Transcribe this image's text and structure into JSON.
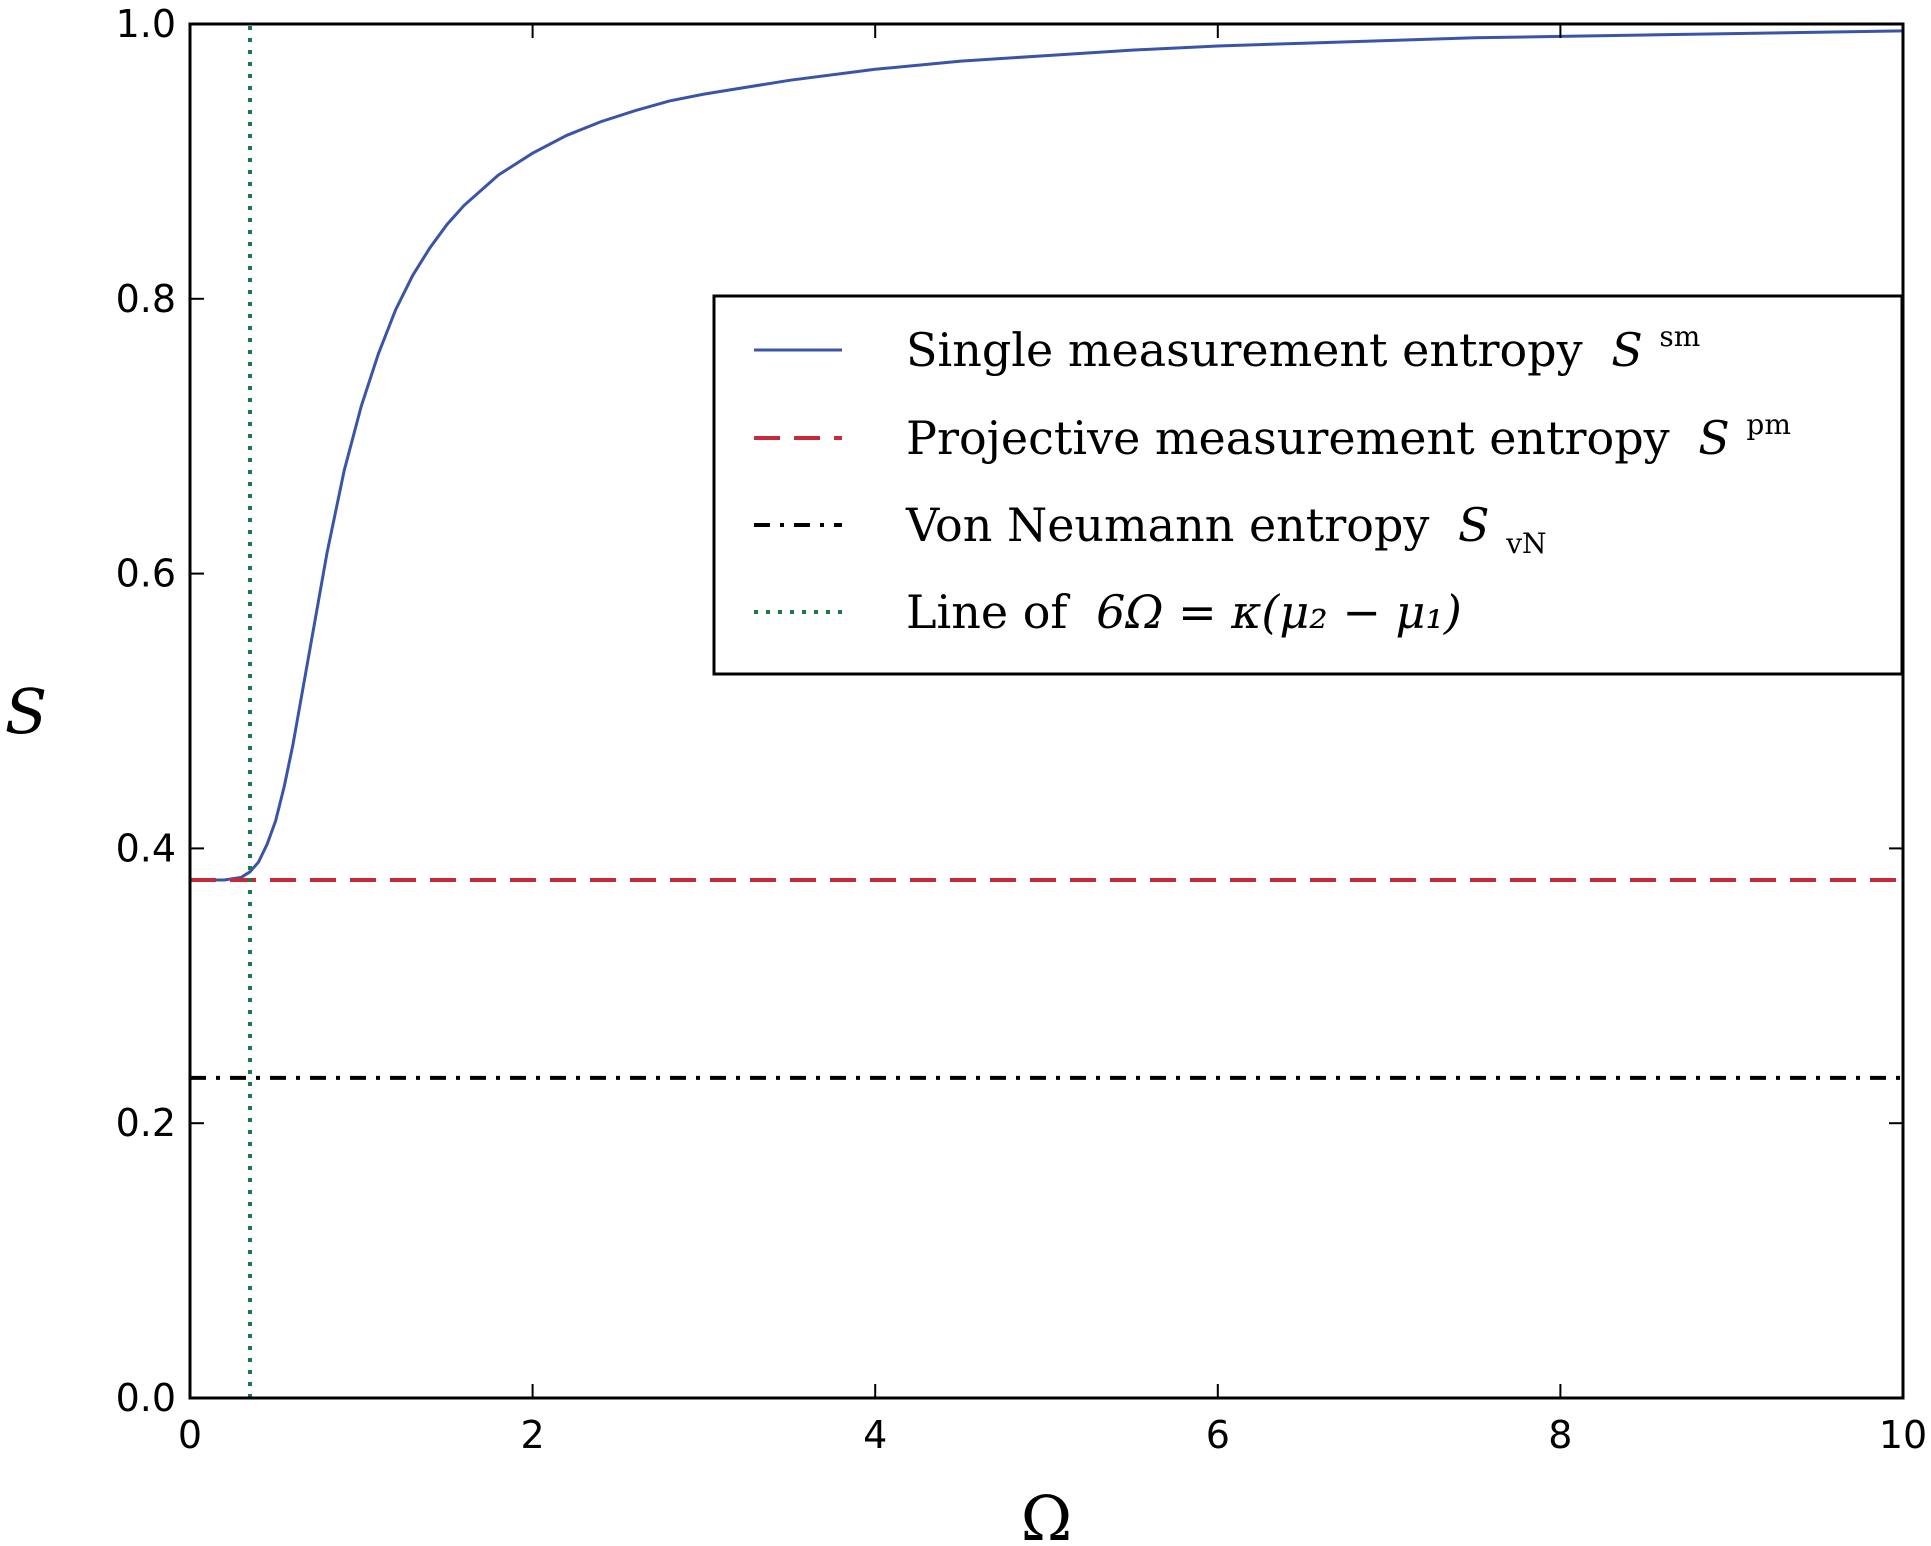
{
  "chart_data": {
    "type": "line",
    "xlabel": "Ω",
    "ylabel": "S",
    "xlim": [
      0,
      10
    ],
    "ylim": [
      0,
      1.0
    ],
    "x_ticks": [
      "0",
      "2",
      "4",
      "6",
      "8",
      "10"
    ],
    "y_ticks": [
      "0.0",
      "0.2",
      "0.4",
      "0.6",
      "0.8",
      "1.0"
    ],
    "grid": false,
    "legend_position": "upper-right",
    "series": [
      {
        "name": "Single measurement entropy",
        "symbol": "S",
        "superscript": "sm",
        "style": "solid",
        "color": "#3a55a8",
        "x": [
          0,
          0.1,
          0.2,
          0.3,
          0.35,
          0.4,
          0.45,
          0.5,
          0.55,
          0.6,
          0.7,
          0.8,
          0.9,
          1.0,
          1.1,
          1.2,
          1.3,
          1.4,
          1.5,
          1.6,
          1.8,
          2.0,
          2.2,
          2.4,
          2.6,
          2.8,
          3.0,
          3.5,
          4.0,
          4.5,
          5.0,
          5.5,
          6.0,
          6.5,
          7.0,
          7.5,
          8.0,
          8.5,
          9.0,
          9.5,
          10.0
        ],
        "y": [
          0.377,
          0.377,
          0.377,
          0.379,
          0.383,
          0.39,
          0.403,
          0.42,
          0.445,
          0.475,
          0.545,
          0.615,
          0.675,
          0.722,
          0.76,
          0.792,
          0.817,
          0.837,
          0.854,
          0.868,
          0.89,
          0.906,
          0.919,
          0.929,
          0.937,
          0.944,
          0.949,
          0.959,
          0.967,
          0.973,
          0.977,
          0.981,
          0.984,
          0.986,
          0.988,
          0.99,
          0.991,
          0.992,
          0.993,
          0.994,
          0.995
        ]
      },
      {
        "name": "Projective measurement entropy",
        "symbol": "S",
        "superscript": "pm",
        "style": "dashed",
        "color": "#c8283a",
        "x": [
          0,
          10
        ],
        "y": [
          0.377,
          0.377
        ]
      },
      {
        "name": "Von Neumann entropy",
        "symbol": "S",
        "subscript": "vN",
        "style": "dashdot",
        "color": "#000000",
        "x": [
          0,
          10
        ],
        "y": [
          0.233,
          0.233
        ]
      },
      {
        "name": "Line of",
        "formula": "6Ω = κ(μ₂ − μ₁)",
        "style": "dotted",
        "color": "#1a7a4a",
        "x": [
          0.35,
          0.35
        ],
        "y": [
          0,
          1.0
        ]
      }
    ]
  }
}
